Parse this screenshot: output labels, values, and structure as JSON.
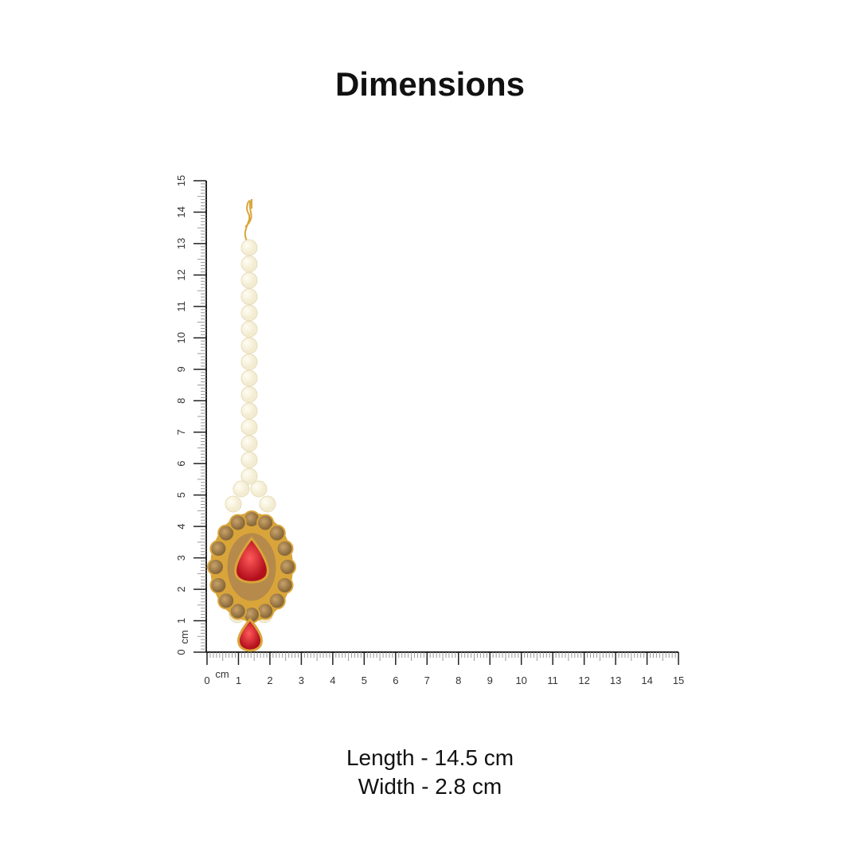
{
  "title": "Dimensions",
  "ruler": {
    "unit_label": "cm",
    "min": 0,
    "max": 15,
    "tick_labels": [
      "0",
      "1",
      "2",
      "3",
      "4",
      "5",
      "6",
      "7",
      "8",
      "9",
      "10",
      "11",
      "12",
      "13",
      "14",
      "15"
    ]
  },
  "measurements": {
    "length": "Length - 14.5 cm",
    "width": "Width - 2.8 cm"
  },
  "product": {
    "length_cm": 14.5,
    "width_cm": 2.8,
    "colors": {
      "pearl": "#f3ecd2",
      "gold": "#d9a53a",
      "stone_brown": "#8a6a3a",
      "stone_red": "#d8192a"
    }
  }
}
